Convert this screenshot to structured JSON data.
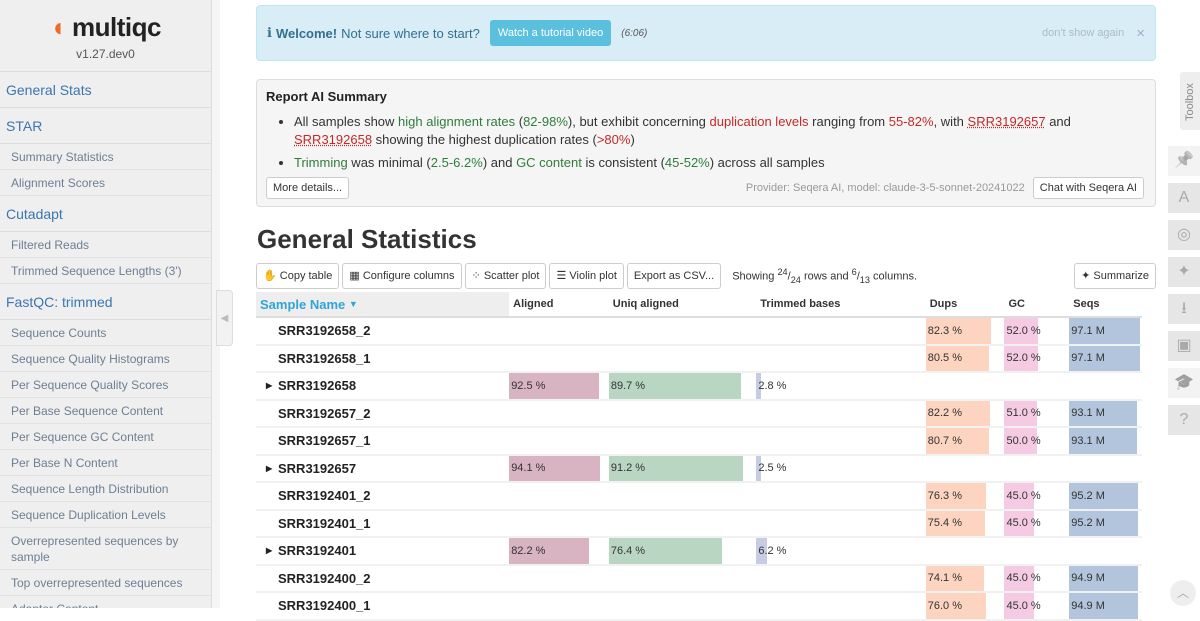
{
  "sidebar": {
    "logo_text": "multiqc",
    "version": "v1.27.dev0",
    "items": [
      {
        "label": "General Stats",
        "level": 1
      },
      {
        "label": "STAR",
        "level": 1
      },
      {
        "label": "Summary Statistics",
        "level": 2
      },
      {
        "label": "Alignment Scores",
        "level": 2
      },
      {
        "label": "Cutadapt",
        "level": 1
      },
      {
        "label": "Filtered Reads",
        "level": 2
      },
      {
        "label": "Trimmed Sequence Lengths (3')",
        "level": 2
      },
      {
        "label": "FastQC: trimmed",
        "level": 1
      },
      {
        "label": "Sequence Counts",
        "level": 2
      },
      {
        "label": "Sequence Quality Histograms",
        "level": 2
      },
      {
        "label": "Per Sequence Quality Scores",
        "level": 2
      },
      {
        "label": "Per Base Sequence Content",
        "level": 2
      },
      {
        "label": "Per Sequence GC Content",
        "level": 2
      },
      {
        "label": "Per Base N Content",
        "level": 2
      },
      {
        "label": "Sequence Length Distribution",
        "level": 2
      },
      {
        "label": "Sequence Duplication Levels",
        "level": 2
      },
      {
        "label": "Overrepresented sequences by sample",
        "level": 2
      },
      {
        "label": "Top overrepresented sequences",
        "level": 2
      },
      {
        "label": "Adapter Content",
        "level": 2
      }
    ]
  },
  "welcome": {
    "bold": "Welcome!",
    "text": "Not sure where to start?",
    "button": "Watch a tutorial video",
    "duration": "(6:06)",
    "dismiss": "don't show again",
    "close": "×"
  },
  "ai_summary": {
    "title": "Report AI Summary",
    "b1": {
      "t1": "All samples show ",
      "g1": "high alignment rates",
      "t2": " (",
      "g2": "82-98%",
      "t3": "), but exhibit concerning ",
      "r1": "duplication levels",
      "t4": " ranging from ",
      "r2": "55-82%",
      "t5": ", with ",
      "l1": "SRR3192657",
      "t6": " and ",
      "l2": "SRR3192658",
      "t7": " showing the highest duplication rates (",
      "r3": ">80%",
      "t8": ")"
    },
    "b2": {
      "g1": "Trimming",
      "t1": " was minimal (",
      "g2": "2.5-6.2%",
      "t2": ") and ",
      "g3": "GC content",
      "t3": " is consistent (",
      "g4": "45-52%",
      "t4": ") across all samples"
    },
    "more_button": "More details...",
    "provider": "Provider: Seqera AI, model: claude-3-5-sonnet-20241022",
    "chat_button": "Chat with Seqera AI"
  },
  "general_stats": {
    "title": "General Statistics",
    "toolbar": {
      "copy": "Copy table",
      "configure": "Configure columns",
      "scatter": "Scatter plot",
      "violin": "Violin plot",
      "export": "Export as CSV...",
      "showing_pre": "Showing ",
      "rows_shown": "24",
      "rows_total": "24",
      "showing_mid": " rows and ",
      "cols_shown": "6",
      "cols_total": "13",
      "showing_post": " columns.",
      "summarize": "Summarize"
    },
    "columns": [
      "Sample Name",
      "Aligned",
      "Uniq aligned",
      "Trimmed bases",
      "Dups",
      "GC",
      "Seqs"
    ],
    "colors": {
      "aligned": "#d8b4c2",
      "uniq": "#b9d6c3",
      "trimmed": "#c6cce4",
      "dups": "#fcd4bf",
      "gc": "#f5cbe4",
      "seqs": "#b3c5dc"
    },
    "rows": [
      {
        "name": "SRR3192658_2",
        "dups": "82.3 %",
        "gc": "52.0 %",
        "seqs": "97.1 M"
      },
      {
        "name": "SRR3192658_1",
        "dups": "80.5 %",
        "gc": "52.0 %",
        "seqs": "97.1 M"
      },
      {
        "name": "SRR3192658",
        "expandable": true,
        "aligned": "92.5 %",
        "uniq": "89.7 %",
        "trimmed": "2.8 %"
      },
      {
        "name": "SRR3192657_2",
        "dups": "82.2 %",
        "gc": "51.0 %",
        "seqs": "93.1 M"
      },
      {
        "name": "SRR3192657_1",
        "dups": "80.7 %",
        "gc": "50.0 %",
        "seqs": "93.1 M"
      },
      {
        "name": "SRR3192657",
        "expandable": true,
        "aligned": "94.1 %",
        "uniq": "91.2 %",
        "trimmed": "2.5 %"
      },
      {
        "name": "SRR3192401_2",
        "dups": "76.3 %",
        "gc": "45.0 %",
        "seqs": "95.2 M"
      },
      {
        "name": "SRR3192401_1",
        "dups": "75.4 %",
        "gc": "45.0 %",
        "seqs": "95.2 M"
      },
      {
        "name": "SRR3192401",
        "expandable": true,
        "aligned": "82.2 %",
        "uniq": "76.4 %",
        "trimmed": "6.2 %"
      },
      {
        "name": "SRR3192400_2",
        "dups": "74.1 %",
        "gc": "45.0 %",
        "seqs": "94.9 M"
      },
      {
        "name": "SRR3192400_1",
        "dups": "76.0 %",
        "gc": "45.0 %",
        "seqs": "94.9 M"
      }
    ]
  },
  "toolbox": {
    "label": "Toolbox",
    "icons": [
      "pin-icon",
      "font-icon",
      "eye-slash-icon",
      "sparkle-icon",
      "download-icon",
      "save-icon",
      "graduation-cap-icon",
      "help-icon"
    ]
  }
}
